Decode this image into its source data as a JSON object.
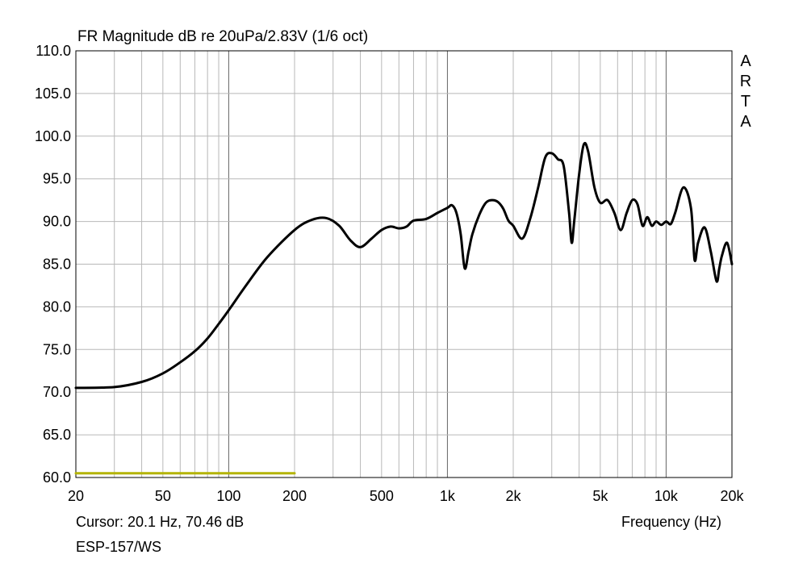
{
  "chart_data": {
    "type": "line",
    "title": "FR Magnitude dB re 20uPa/2.83V (1/6 oct)",
    "xlabel": "Frequency (Hz)",
    "ylabel": "",
    "x_scale": "log",
    "xlim": [
      20,
      20000
    ],
    "ylim": [
      60,
      110
    ],
    "grid": true,
    "x_ticks": [
      20,
      50,
      100,
      200,
      500,
      1000,
      2000,
      5000,
      10000,
      20000
    ],
    "x_tick_labels": [
      "20",
      "50",
      "100",
      "200",
      "500",
      "1k",
      "2k",
      "5k",
      "10k",
      "20k"
    ],
    "y_ticks": [
      60,
      65,
      70,
      75,
      80,
      85,
      90,
      95,
      100,
      105,
      110
    ],
    "y_tick_labels": [
      "60.0",
      "65.0",
      "70.0",
      "75.0",
      "80.0",
      "85.0",
      "90.0",
      "95.0",
      "100.0",
      "105.0",
      "110.0"
    ],
    "series": [
      {
        "color": "#000000",
        "x": [
          20,
          30,
          40,
          50,
          60,
          70,
          80,
          90,
          100,
          120,
          150,
          200,
          240,
          280,
          320,
          360,
          400,
          450,
          500,
          550,
          600,
          650,
          700,
          800,
          900,
          1000,
          1050,
          1100,
          1150,
          1200,
          1250,
          1300,
          1400,
          1500,
          1600,
          1700,
          1800,
          1900,
          2000,
          2200,
          2400,
          2600,
          2800,
          3000,
          3200,
          3400,
          3600,
          3700,
          3800,
          4000,
          4200,
          4400,
          4700,
          5000,
          5400,
          5800,
          6200,
          6600,
          7000,
          7400,
          7800,
          8200,
          8600,
          9000,
          9500,
          10000,
          10500,
          11000,
          12000,
          13000,
          13500,
          14000,
          15000,
          16000,
          17000,
          17500,
          18000,
          19000,
          20000
        ],
        "y": [
          70.5,
          70.6,
          71.2,
          72.2,
          73.5,
          74.8,
          76.3,
          78,
          79.6,
          82.5,
          85.8,
          89,
          90.2,
          90.4,
          89.5,
          87.8,
          87,
          88,
          89,
          89.4,
          89.2,
          89.4,
          90.1,
          90.3,
          91,
          91.6,
          91.9,
          91,
          88.5,
          84.5,
          86.5,
          88.5,
          90.8,
          92.2,
          92.5,
          92.3,
          91.5,
          90.1,
          89.5,
          88,
          90.5,
          94,
          97.5,
          98,
          97.3,
          96.5,
          91,
          87.5,
          90,
          95.5,
          99,
          98.2,
          94,
          92.2,
          92.5,
          91,
          89,
          91,
          92.5,
          92,
          89.5,
          90.5,
          89.5,
          90,
          89.6,
          90,
          89.7,
          91,
          94,
          91.5,
          85.5,
          87.5,
          89.3,
          86.5,
          83,
          84.5,
          86,
          87.5,
          85
        ]
      },
      {
        "color": "#b4b400",
        "x": [
          20,
          200
        ],
        "y": [
          60.5,
          60.5
        ]
      }
    ]
  },
  "footer": {
    "cursor": "Cursor: 20.1 Hz, 70.46 dB",
    "device": "ESP-157/WS"
  },
  "watermark": [
    "A",
    "R",
    "T",
    "A"
  ]
}
